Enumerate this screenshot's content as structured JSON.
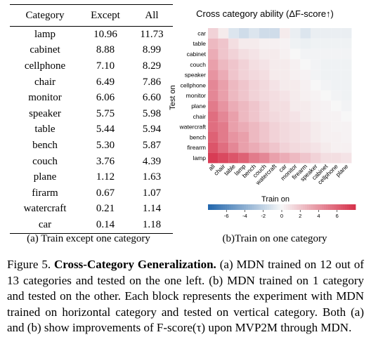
{
  "table": {
    "headers": [
      "Category",
      "Except",
      "All"
    ],
    "rows": [
      [
        "lamp",
        "10.96",
        "11.73"
      ],
      [
        "cabinet",
        "8.88",
        "8.99"
      ],
      [
        "cellphone",
        "7.10",
        "8.29"
      ],
      [
        "chair",
        "6.49",
        "7.86"
      ],
      [
        "monitor",
        "6.06",
        "6.60"
      ],
      [
        "speaker",
        "5.75",
        "5.98"
      ],
      [
        "table",
        "5.44",
        "5.94"
      ],
      [
        "bench",
        "5.30",
        "5.87"
      ],
      [
        "couch",
        "3.76",
        "4.39"
      ],
      [
        "plane",
        "1.12",
        "1.63"
      ],
      [
        "firarm",
        "0.67",
        "1.07"
      ],
      [
        "watercraft",
        "0.21",
        "1.14"
      ],
      [
        "car",
        "0.14",
        "1.18"
      ]
    ],
    "caption": "(a) Train except one category"
  },
  "chart_data": {
    "type": "heatmap",
    "title": "Cross category ability (ΔF-score↑)",
    "xlabel": "Train on",
    "ylabel": "Test on",
    "x_categories": [
      "all",
      "chair",
      "table",
      "lamp",
      "bench",
      "couch",
      "watercraft",
      "car",
      "monitor",
      "firearm",
      "speaker",
      "cabinet",
      "cellphone",
      "plane"
    ],
    "y_categories": [
      "car",
      "table",
      "cabinet",
      "couch",
      "speaker",
      "cellphone",
      "monitor",
      "plane",
      "chair",
      "watercraft",
      "bench",
      "firearm",
      "lamp"
    ],
    "values": [
      [
        1.5,
        0.5,
        -1.0,
        -1.5,
        -1.0,
        -1.5,
        -1.5,
        0.5,
        -0.5,
        -1.0,
        -0.5,
        -0.5,
        -0.5,
        -0.5
      ],
      [
        2.5,
        2.0,
        1.0,
        0.5,
        0.5,
        0.3,
        0.3,
        0.2,
        -0.3,
        -0.4,
        -0.3,
        -0.3,
        -0.3,
        -0.3
      ],
      [
        3.0,
        2.0,
        1.5,
        1.0,
        0.8,
        0.5,
        0.5,
        0.3,
        0.0,
        -0.2,
        -0.2,
        -0.2,
        -0.2,
        -0.2
      ],
      [
        3.5,
        2.5,
        2.0,
        1.5,
        1.0,
        0.8,
        0.5,
        0.5,
        0.3,
        0.0,
        -0.2,
        -0.3,
        -0.3,
        -0.3
      ],
      [
        4.0,
        3.0,
        2.0,
        1.5,
        1.2,
        1.0,
        0.5,
        0.5,
        0.3,
        0.2,
        -0.2,
        -0.3,
        -0.3,
        -0.3
      ],
      [
        4.5,
        3.5,
        2.5,
        2.0,
        1.5,
        1.2,
        0.8,
        0.5,
        0.5,
        0.3,
        0.0,
        -0.2,
        -0.3,
        -0.3
      ],
      [
        4.5,
        3.5,
        2.5,
        2.0,
        1.5,
        1.2,
        1.0,
        0.8,
        0.5,
        0.3,
        0.2,
        0.0,
        -0.2,
        -0.3
      ],
      [
        5.0,
        4.0,
        3.0,
        2.5,
        2.0,
        1.5,
        1.0,
        1.0,
        0.5,
        0.5,
        0.3,
        0.2,
        0.0,
        -0.2
      ],
      [
        5.5,
        4.5,
        3.5,
        2.5,
        2.0,
        1.5,
        1.2,
        1.0,
        0.8,
        0.5,
        0.3,
        0.2,
        0.2,
        0.0
      ],
      [
        5.5,
        5.0,
        3.5,
        3.0,
        2.5,
        2.0,
        1.5,
        1.2,
        1.0,
        0.8,
        0.5,
        0.3,
        0.2,
        0.2
      ],
      [
        6.0,
        5.0,
        4.0,
        3.5,
        2.5,
        2.0,
        1.5,
        1.2,
        1.0,
        0.8,
        0.5,
        0.3,
        0.3,
        0.2
      ],
      [
        6.5,
        5.5,
        4.5,
        3.5,
        3.0,
        2.5,
        2.0,
        1.5,
        1.2,
        1.0,
        0.8,
        0.5,
        0.3,
        0.3
      ],
      [
        7.5,
        7.0,
        6.5,
        6.0,
        5.0,
        4.5,
        3.5,
        3.0,
        2.5,
        2.0,
        1.5,
        1.0,
        1.0,
        0.8
      ]
    ],
    "colorbar": {
      "min": -8,
      "max": 8,
      "ticks": [
        "-6",
        "-4",
        "-2",
        "0",
        "2",
        "4",
        "6"
      ]
    },
    "colors": {
      "negative": "#2166ac",
      "neutral": "#f7f7f7",
      "positive": "#d6304a"
    },
    "caption": "(b)Train on one category"
  },
  "figure_caption": {
    "label": "Figure 5.",
    "title": "Cross-Category Generalization.",
    "body": " (a) MDN trained on 12 out of 13 categories and tested on the one left. (b) MDN trained on 1 category and tested on the other. Each block represents the experiment with MDN trained on horizontal category and tested on vertical category. Both (a) and (b) show improvements of F-score(τ) upon MVP2M through MDN."
  }
}
